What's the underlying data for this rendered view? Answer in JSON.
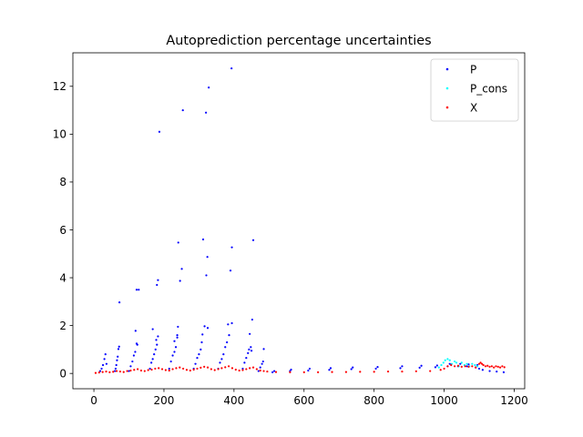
{
  "chart_data": {
    "type": "scatter",
    "title": "Autoprediction percentage uncertainties",
    "xlabel": "",
    "ylabel": "",
    "xlim": [
      -60,
      1230
    ],
    "ylim": [
      -0.64,
      13.4
    ],
    "xticks": [
      0,
      200,
      400,
      600,
      800,
      1000,
      1200
    ],
    "yticks": [
      0,
      2,
      4,
      6,
      8,
      10,
      12
    ],
    "grid": false,
    "legend": {
      "placement": "top-right"
    },
    "series": [
      {
        "name": "P",
        "color": "#0000ff",
        "points": [
          [
            73,
            2.97
          ],
          [
            119,
            1.78
          ],
          [
            122,
            3.5
          ],
          [
            128,
            3.5
          ],
          [
            168,
            1.85
          ],
          [
            180,
            3.7
          ],
          [
            183,
            3.9
          ],
          [
            187,
            10.1
          ],
          [
            178,
            1.4
          ],
          [
            183,
            1.55
          ],
          [
            230,
            1.35
          ],
          [
            240,
            1.95
          ],
          [
            241,
            5.47
          ],
          [
            246,
            3.87
          ],
          [
            251,
            4.37
          ],
          [
            254,
            11.0
          ],
          [
            238,
            1.6
          ],
          [
            310,
            1.63
          ],
          [
            312,
            5.6
          ],
          [
            316,
            1.97
          ],
          [
            320,
            10.9
          ],
          [
            321,
            4.1
          ],
          [
            324,
            4.87
          ],
          [
            328,
            11.95
          ],
          [
            325,
            1.9
          ],
          [
            383,
            2.05
          ],
          [
            386,
            1.6
          ],
          [
            390,
            4.3
          ],
          [
            393,
            12.75
          ],
          [
            394,
            2.1
          ],
          [
            394,
            5.27
          ],
          [
            445,
            1.65
          ],
          [
            450,
            0.95
          ],
          [
            452,
            2.25
          ],
          [
            455,
            5.57
          ],
          [
            448,
            1.1
          ],
          [
            485,
            1.02
          ],
          [
            60,
            0.1
          ],
          [
            62,
            0.2
          ],
          [
            64,
            0.35
          ],
          [
            66,
            0.55
          ],
          [
            68,
            0.7
          ],
          [
            70,
            1.02
          ],
          [
            72,
            1.12
          ],
          [
            18,
            0.1
          ],
          [
            22,
            0.2
          ],
          [
            26,
            0.35
          ],
          [
            30,
            0.6
          ],
          [
            33,
            0.8
          ],
          [
            36,
            0.4
          ],
          [
            100,
            0.1
          ],
          [
            105,
            0.3
          ],
          [
            110,
            0.5
          ],
          [
            114,
            0.75
          ],
          [
            118,
            0.9
          ],
          [
            122,
            1.25
          ],
          [
            124,
            1.2
          ],
          [
            160,
            0.2
          ],
          [
            164,
            0.45
          ],
          [
            168,
            0.6
          ],
          [
            172,
            0.8
          ],
          [
            176,
            1.0
          ],
          [
            180,
            1.2
          ],
          [
            215,
            0.2
          ],
          [
            220,
            0.5
          ],
          [
            225,
            0.75
          ],
          [
            230,
            0.9
          ],
          [
            234,
            1.1
          ],
          [
            238,
            1.5
          ],
          [
            285,
            0.2
          ],
          [
            290,
            0.4
          ],
          [
            295,
            0.65
          ],
          [
            300,
            0.8
          ],
          [
            305,
            1.0
          ],
          [
            308,
            1.3
          ],
          [
            355,
            0.2
          ],
          [
            360,
            0.45
          ],
          [
            365,
            0.6
          ],
          [
            370,
            0.8
          ],
          [
            375,
            1.1
          ],
          [
            380,
            1.3
          ],
          [
            425,
            0.2
          ],
          [
            430,
            0.45
          ],
          [
            435,
            0.65
          ],
          [
            440,
            0.85
          ],
          [
            443,
            1.0
          ],
          [
            470,
            0.1
          ],
          [
            475,
            0.25
          ],
          [
            480,
            0.4
          ],
          [
            483,
            0.5
          ],
          [
            510,
            0.05
          ],
          [
            515,
            0.1
          ],
          [
            560,
            0.1
          ],
          [
            563,
            0.16
          ],
          [
            612,
            0.12
          ],
          [
            616,
            0.2
          ],
          [
            672,
            0.15
          ],
          [
            676,
            0.22
          ],
          [
            735,
            0.18
          ],
          [
            739,
            0.25
          ],
          [
            805,
            0.2
          ],
          [
            810,
            0.27
          ],
          [
            875,
            0.22
          ],
          [
            880,
            0.3
          ],
          [
            930,
            0.24
          ],
          [
            935,
            0.32
          ],
          [
            975,
            0.26
          ],
          [
            980,
            0.33
          ],
          [
            1010,
            0.3
          ],
          [
            1016,
            0.4
          ],
          [
            1040,
            0.3
          ],
          [
            1046,
            0.4
          ],
          [
            1065,
            0.3
          ],
          [
            1070,
            0.38
          ],
          [
            1090,
            0.25
          ],
          [
            1095,
            0.35
          ],
          [
            1100,
            0.2
          ],
          [
            1110,
            0.15
          ],
          [
            1130,
            0.1
          ],
          [
            1150,
            0.08
          ],
          [
            1170,
            0.05
          ]
        ]
      },
      {
        "name": "P_cons",
        "color": "#00ffff",
        "points": [
          [
            985,
            0.25
          ],
          [
            992,
            0.35
          ],
          [
            998,
            0.45
          ],
          [
            1003,
            0.55
          ],
          [
            1010,
            0.6
          ],
          [
            1016,
            0.55
          ],
          [
            1022,
            0.4
          ],
          [
            1030,
            0.5
          ],
          [
            1035,
            0.45
          ],
          [
            1042,
            0.3
          ],
          [
            1050,
            0.45
          ],
          [
            1058,
            0.35
          ],
          [
            1065,
            0.4
          ],
          [
            1072,
            0.3
          ],
          [
            1080,
            0.4
          ],
          [
            1088,
            0.35
          ],
          [
            1095,
            0.3
          ]
        ]
      },
      {
        "name": "X",
        "color": "#ff0000",
        "points": [
          [
            5,
            0.02
          ],
          [
            15,
            0.04
          ],
          [
            25,
            0.06
          ],
          [
            35,
            0.08
          ],
          [
            45,
            0.05
          ],
          [
            55,
            0.07
          ],
          [
            65,
            0.1
          ],
          [
            75,
            0.08
          ],
          [
            85,
            0.06
          ],
          [
            95,
            0.1
          ],
          [
            105,
            0.12
          ],
          [
            115,
            0.15
          ],
          [
            125,
            0.18
          ],
          [
            135,
            0.12
          ],
          [
            145,
            0.1
          ],
          [
            155,
            0.14
          ],
          [
            165,
            0.16
          ],
          [
            175,
            0.2
          ],
          [
            185,
            0.22
          ],
          [
            195,
            0.18
          ],
          [
            205,
            0.14
          ],
          [
            215,
            0.12
          ],
          [
            225,
            0.18
          ],
          [
            235,
            0.22
          ],
          [
            245,
            0.25
          ],
          [
            255,
            0.2
          ],
          [
            265,
            0.15
          ],
          [
            275,
            0.12
          ],
          [
            285,
            0.16
          ],
          [
            295,
            0.2
          ],
          [
            305,
            0.24
          ],
          [
            315,
            0.28
          ],
          [
            325,
            0.25
          ],
          [
            335,
            0.18
          ],
          [
            345,
            0.14
          ],
          [
            355,
            0.18
          ],
          [
            365,
            0.22
          ],
          [
            375,
            0.26
          ],
          [
            385,
            0.3
          ],
          [
            395,
            0.22
          ],
          [
            405,
            0.16
          ],
          [
            415,
            0.12
          ],
          [
            425,
            0.14
          ],
          [
            435,
            0.18
          ],
          [
            445,
            0.22
          ],
          [
            455,
            0.25
          ],
          [
            465,
            0.18
          ],
          [
            475,
            0.12
          ],
          [
            485,
            0.1
          ],
          [
            495,
            0.08
          ],
          [
            520,
            0.06
          ],
          [
            560,
            0.05
          ],
          [
            600,
            0.05
          ],
          [
            640,
            0.05
          ],
          [
            680,
            0.06
          ],
          [
            720,
            0.06
          ],
          [
            760,
            0.07
          ],
          [
            800,
            0.07
          ],
          [
            840,
            0.08
          ],
          [
            880,
            0.08
          ],
          [
            920,
            0.09
          ],
          [
            960,
            0.1
          ],
          [
            990,
            0.15
          ],
          [
            1000,
            0.2
          ],
          [
            1010,
            0.3
          ],
          [
            1020,
            0.35
          ],
          [
            1030,
            0.3
          ],
          [
            1040,
            0.32
          ],
          [
            1050,
            0.28
          ],
          [
            1060,
            0.3
          ],
          [
            1070,
            0.28
          ],
          [
            1080,
            0.3
          ],
          [
            1090,
            0.25
          ],
          [
            1100,
            0.4
          ],
          [
            1104,
            0.45
          ],
          [
            1108,
            0.4
          ],
          [
            1112,
            0.35
          ],
          [
            1118,
            0.3
          ],
          [
            1124,
            0.32
          ],
          [
            1130,
            0.28
          ],
          [
            1136,
            0.3
          ],
          [
            1142,
            0.25
          ],
          [
            1148,
            0.3
          ],
          [
            1154,
            0.28
          ],
          [
            1160,
            0.25
          ],
          [
            1166,
            0.3
          ],
          [
            1172,
            0.26
          ]
        ]
      }
    ]
  }
}
